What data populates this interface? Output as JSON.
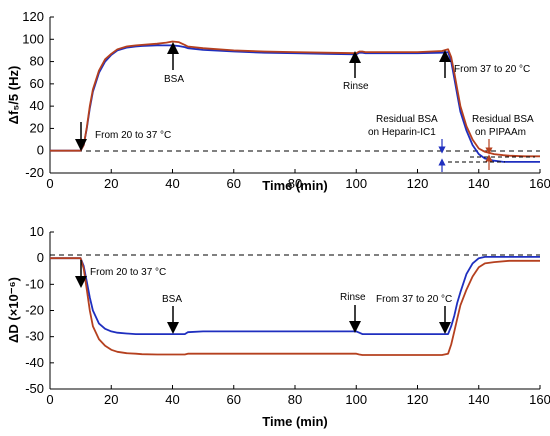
{
  "colors": {
    "blue": "#1f2fbf",
    "red": "#b5401f",
    "axis": "#000000"
  },
  "chart_data": [
    {
      "type": "line",
      "xlabel": "Time (min)",
      "ylabel": "Δf₅/5 (Hz)",
      "xlim": [
        0,
        160
      ],
      "ylim": [
        -20,
        120
      ],
      "xticks": [
        0,
        20,
        40,
        60,
        80,
        100,
        120,
        140,
        160
      ],
      "yticks": [
        -20,
        0,
        20,
        40,
        60,
        80,
        100,
        120
      ],
      "zero_line": "dashed",
      "x": [
        0,
        8,
        10,
        11,
        12,
        13,
        14,
        16,
        18,
        20,
        22,
        25,
        28,
        30,
        35,
        38,
        40,
        42,
        44,
        45,
        50,
        60,
        70,
        80,
        90,
        100,
        101,
        102,
        103,
        110,
        120,
        128,
        130,
        131,
        132,
        133,
        134,
        136,
        138,
        140,
        142,
        145,
        148,
        150,
        155,
        160
      ],
      "series": [
        {
          "color": "#1f2fbf",
          "values": [
            0,
            0,
            0,
            5,
            20,
            38,
            53,
            70,
            80,
            86,
            90,
            92.5,
            93.5,
            94,
            94.5,
            94.5,
            94.5,
            94,
            93,
            92,
            90.5,
            89,
            88,
            87.5,
            87,
            86.5,
            88,
            88,
            87.5,
            87.5,
            87.5,
            88,
            88.5,
            80,
            65,
            50,
            35,
            18,
            5,
            -3,
            -7,
            -9,
            -10,
            -10,
            -10,
            -10
          ]
        },
        {
          "color": "#b5401f",
          "values": [
            0,
            0,
            0,
            5,
            21,
            40,
            55,
            72,
            82,
            87,
            91,
            93.5,
            94.5,
            95,
            96,
            97,
            98,
            97.5,
            95,
            93.5,
            92,
            90,
            89,
            88.5,
            88,
            87.5,
            89,
            89,
            88.5,
            88.5,
            88.5,
            89.5,
            91,
            84,
            70,
            55,
            40,
            22,
            10,
            2,
            -1,
            -3,
            -4,
            -4.5,
            -5,
            -5
          ]
        }
      ],
      "annotations": [
        {
          "text": "From 20 to 37 °C",
          "x": 10,
          "y": 0
        },
        {
          "text": "BSA",
          "x": 40,
          "y": 94
        },
        {
          "text": "Rinse",
          "x": 100,
          "y": 87
        },
        {
          "text": "From 37 to 20 °C",
          "x": 130,
          "y": 88
        },
        {
          "text": "Residual BSA",
          "color": "#1f2fbf"
        },
        {
          "text": "on Heparin-IC1",
          "color": "#1f2fbf"
        },
        {
          "text": "Residual BSA",
          "color": "#b5401f"
        },
        {
          "text": "on PIPAAm",
          "color": "#b5401f"
        }
      ]
    },
    {
      "type": "line",
      "xlabel": "Time (min)",
      "ylabel": "ΔD (×10⁻⁶)",
      "xlim": [
        0,
        160
      ],
      "ylim": [
        -50,
        10
      ],
      "xticks": [
        0,
        20,
        40,
        60,
        80,
        100,
        120,
        140,
        160
      ],
      "yticks": [
        -50,
        -40,
        -30,
        -20,
        -10,
        0,
        10
      ],
      "zero_line": "dashed",
      "x": [
        0,
        8,
        10,
        11,
        12,
        13,
        14,
        16,
        18,
        20,
        22,
        25,
        28,
        30,
        35,
        40,
        44,
        45,
        50,
        60,
        70,
        80,
        90,
        100,
        101,
        102,
        103,
        110,
        120,
        128,
        130,
        131,
        132,
        133,
        134,
        136,
        138,
        140,
        142,
        145,
        150,
        155,
        160
      ],
      "series": [
        {
          "color": "#1f2fbf",
          "values": [
            0,
            0,
            0,
            -3,
            -9,
            -15,
            -20,
            -25,
            -27,
            -28,
            -28.5,
            -28.8,
            -29,
            -29,
            -29,
            -29,
            -29,
            -28.3,
            -28,
            -28,
            -28,
            -28,
            -28,
            -28,
            -28.5,
            -29,
            -29,
            -29,
            -29,
            -29,
            -29,
            -26,
            -22,
            -17,
            -13,
            -6,
            -2,
            0,
            0.5,
            0.5,
            0.5,
            0.5,
            0.5
          ]
        },
        {
          "color": "#b5401f",
          "values": [
            0,
            0,
            0,
            -4,
            -12,
            -20,
            -26,
            -31,
            -33.5,
            -35,
            -35.8,
            -36.3,
            -36.5,
            -36.7,
            -36.8,
            -36.8,
            -36.8,
            -36.5,
            -36.5,
            -36.5,
            -36.5,
            -36.5,
            -36.5,
            -36.5,
            -36.8,
            -37,
            -37,
            -37,
            -37,
            -37,
            -36.5,
            -33,
            -28,
            -23,
            -18,
            -12,
            -7,
            -3.5,
            -2,
            -1.5,
            -1,
            -1,
            -1
          ]
        }
      ],
      "annotations": [
        {
          "text": "From 20 to 37 °C",
          "x": 10,
          "y": 0
        },
        {
          "text": "BSA",
          "x": 40,
          "y": -29
        },
        {
          "text": "Rinse",
          "x": 100,
          "y": -28
        },
        {
          "text": "From 37 to 20 °C",
          "x": 130,
          "y": -29
        }
      ]
    }
  ]
}
